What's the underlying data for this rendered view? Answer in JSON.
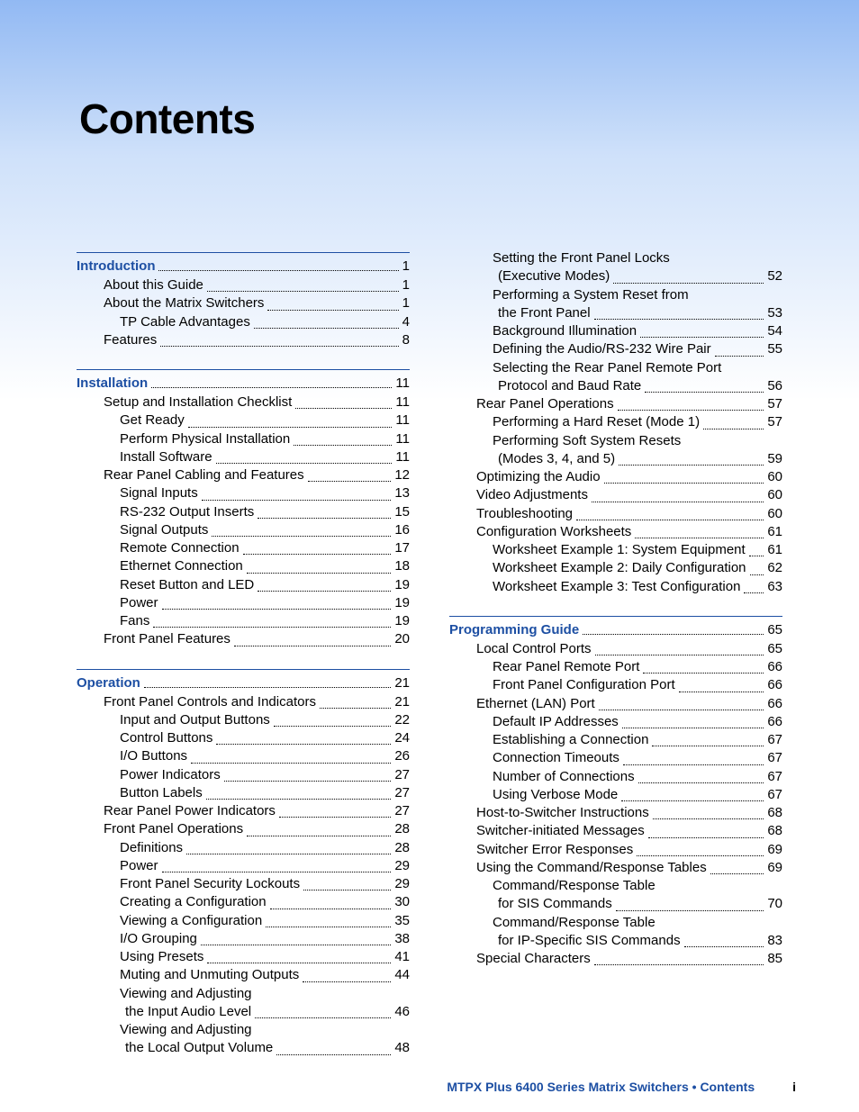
{
  "title": "Contents",
  "footer": {
    "text": "MTPX Plus 6400 Series Matrix Switchers • Contents",
    "page": "i"
  },
  "colors": {
    "accent": "#1d4fa3",
    "text": "#000000"
  },
  "left_sections": [
    {
      "heading": "Introduction",
      "page": "1",
      "entries": [
        {
          "label": "About this Guide",
          "page": "1",
          "level": 1
        },
        {
          "label": "About the Matrix Switchers",
          "page": "1",
          "level": 1
        },
        {
          "label": "TP Cable Advantages",
          "page": "4",
          "level": 2
        },
        {
          "label": "Features",
          "page": "8",
          "level": 1
        }
      ]
    },
    {
      "heading": "Installation",
      "page": "11",
      "entries": [
        {
          "label": "Setup and Installation Checklist",
          "page": "11",
          "level": 1
        },
        {
          "label": "Get Ready",
          "page": "11",
          "level": 2
        },
        {
          "label": "Perform Physical Installation",
          "page": "11",
          "level": 2
        },
        {
          "label": "Install Software",
          "page": "11",
          "level": 2
        },
        {
          "label": "Rear Panel Cabling and Features",
          "page": "12",
          "level": 1
        },
        {
          "label": "Signal Inputs",
          "page": "13",
          "level": 2
        },
        {
          "label": "RS-232 Output Inserts",
          "page": "15",
          "level": 2
        },
        {
          "label": "Signal Outputs",
          "page": "16",
          "level": 2
        },
        {
          "label": "Remote Connection",
          "page": "17",
          "level": 2
        },
        {
          "label": "Ethernet Connection",
          "page": "18",
          "level": 2
        },
        {
          "label": "Reset Button and LED",
          "page": "19",
          "level": 2
        },
        {
          "label": "Power",
          "page": "19",
          "level": 2
        },
        {
          "label": "Fans",
          "page": "19",
          "level": 2
        },
        {
          "label": "Front Panel Features",
          "page": "20",
          "level": 1
        }
      ]
    },
    {
      "heading": "Operation",
      "page": "21",
      "entries": [
        {
          "label": "Front Panel Controls and Indicators",
          "page": "21",
          "level": 1
        },
        {
          "label": "Input and Output Buttons",
          "page": "22",
          "level": 2
        },
        {
          "label": "Control Buttons",
          "page": "24",
          "level": 2
        },
        {
          "label": "I/O Buttons",
          "page": "26",
          "level": 2
        },
        {
          "label": "Power Indicators",
          "page": "27",
          "level": 2
        },
        {
          "label": "Button Labels",
          "page": "27",
          "level": 2
        },
        {
          "label": "Rear Panel Power Indicators",
          "page": "27",
          "level": 1
        },
        {
          "label": "Front Panel Operations",
          "page": "28",
          "level": 1
        },
        {
          "label": "Definitions",
          "page": "28",
          "level": 2
        },
        {
          "label": "Power",
          "page": "29",
          "level": 2
        },
        {
          "label": "Front Panel Security Lockouts",
          "page": "29",
          "level": 2
        },
        {
          "label": "Creating a Configuration",
          "page": "30",
          "level": 2
        },
        {
          "label": "Viewing a Configuration",
          "page": "35",
          "level": 2
        },
        {
          "label": "I/O Grouping",
          "page": "38",
          "level": 2
        },
        {
          "label": "Using Presets",
          "page": "41",
          "level": 2
        },
        {
          "label": "Muting and Unmuting Outputs",
          "page": "44",
          "level": 2
        },
        {
          "label": "Viewing and Adjusting",
          "page": "",
          "level": 2,
          "cont": true
        },
        {
          "label": "the Input Audio Level",
          "page": "46",
          "level": 3
        },
        {
          "label": "Viewing and Adjusting",
          "page": "",
          "level": 2,
          "cont": true
        },
        {
          "label": "the Local Output Volume",
          "page": "48",
          "level": 3
        }
      ]
    }
  ],
  "right_blocks": [
    {
      "type": "entries",
      "entries": [
        {
          "label": "Setting the Front Panel Locks",
          "page": "",
          "level": 2,
          "cont": true
        },
        {
          "label": "(Executive Modes)",
          "page": "52",
          "level": 3
        },
        {
          "label": "Performing a System Reset from",
          "page": "",
          "level": 2,
          "cont": true
        },
        {
          "label": "the Front Panel",
          "page": "53",
          "level": 3
        },
        {
          "label": "Background Illumination",
          "page": "54",
          "level": 2
        },
        {
          "label": "Defining the Audio/RS-232 Wire Pair",
          "page": "55",
          "level": 2
        },
        {
          "label": "Selecting the Rear Panel Remote Port",
          "page": "",
          "level": 2,
          "cont": true
        },
        {
          "label": "Protocol and Baud Rate",
          "page": "56",
          "level": 3
        },
        {
          "label": "Rear Panel Operations",
          "page": "57",
          "level": 1
        },
        {
          "label": "Performing a Hard Reset (Mode 1)",
          "page": "57",
          "level": 2
        },
        {
          "label": "Performing Soft System Resets",
          "page": "",
          "level": 2,
          "cont": true
        },
        {
          "label": "(Modes 3, 4, and 5)",
          "page": "59",
          "level": 3
        },
        {
          "label": "Optimizing the Audio",
          "page": "60",
          "level": 1
        },
        {
          "label": "Video Adjustments",
          "page": "60",
          "level": 1
        },
        {
          "label": "Troubleshooting",
          "page": "60",
          "level": 1
        },
        {
          "label": "Configuration Worksheets",
          "page": "61",
          "level": 1
        },
        {
          "label": "Worksheet Example 1: System Equipment",
          "page": "61",
          "level": 2
        },
        {
          "label": "Worksheet Example 2: Daily Configuration",
          "page": "62",
          "level": 2
        },
        {
          "label": "Worksheet Example 3: Test Configuration",
          "page": "63",
          "level": 2
        }
      ]
    },
    {
      "type": "section",
      "heading": "Programming Guide",
      "page": "65",
      "entries": [
        {
          "label": "Local Control Ports",
          "page": "65",
          "level": 1
        },
        {
          "label": "Rear Panel Remote Port",
          "page": "66",
          "level": 2
        },
        {
          "label": "Front Panel Configuration Port",
          "page": "66",
          "level": 2
        },
        {
          "label": "Ethernet (LAN) Port",
          "page": "66",
          "level": 1
        },
        {
          "label": "Default IP Addresses",
          "page": "66",
          "level": 2
        },
        {
          "label": "Establishing a Connection",
          "page": "67",
          "level": 2
        },
        {
          "label": "Connection Timeouts",
          "page": "67",
          "level": 2
        },
        {
          "label": "Number of Connections",
          "page": "67",
          "level": 2
        },
        {
          "label": "Using Verbose Mode",
          "page": "67",
          "level": 2
        },
        {
          "label": "Host-to-Switcher Instructions",
          "page": "68",
          "level": 1
        },
        {
          "label": "Switcher-initiated Messages",
          "page": "68",
          "level": 1
        },
        {
          "label": "Switcher Error Responses",
          "page": "69",
          "level": 1
        },
        {
          "label": "Using the Command/Response Tables",
          "page": "69",
          "level": 1
        },
        {
          "label": "Command/Response Table",
          "page": "",
          "level": 2,
          "cont": true
        },
        {
          "label": "for SIS Commands",
          "page": "70",
          "level": 3
        },
        {
          "label": "Command/Response Table",
          "page": "",
          "level": 2,
          "cont": true
        },
        {
          "label": "for IP-Specific SIS Commands",
          "page": "83",
          "level": 3
        },
        {
          "label": "Special Characters",
          "page": "85",
          "level": 1
        }
      ]
    }
  ]
}
